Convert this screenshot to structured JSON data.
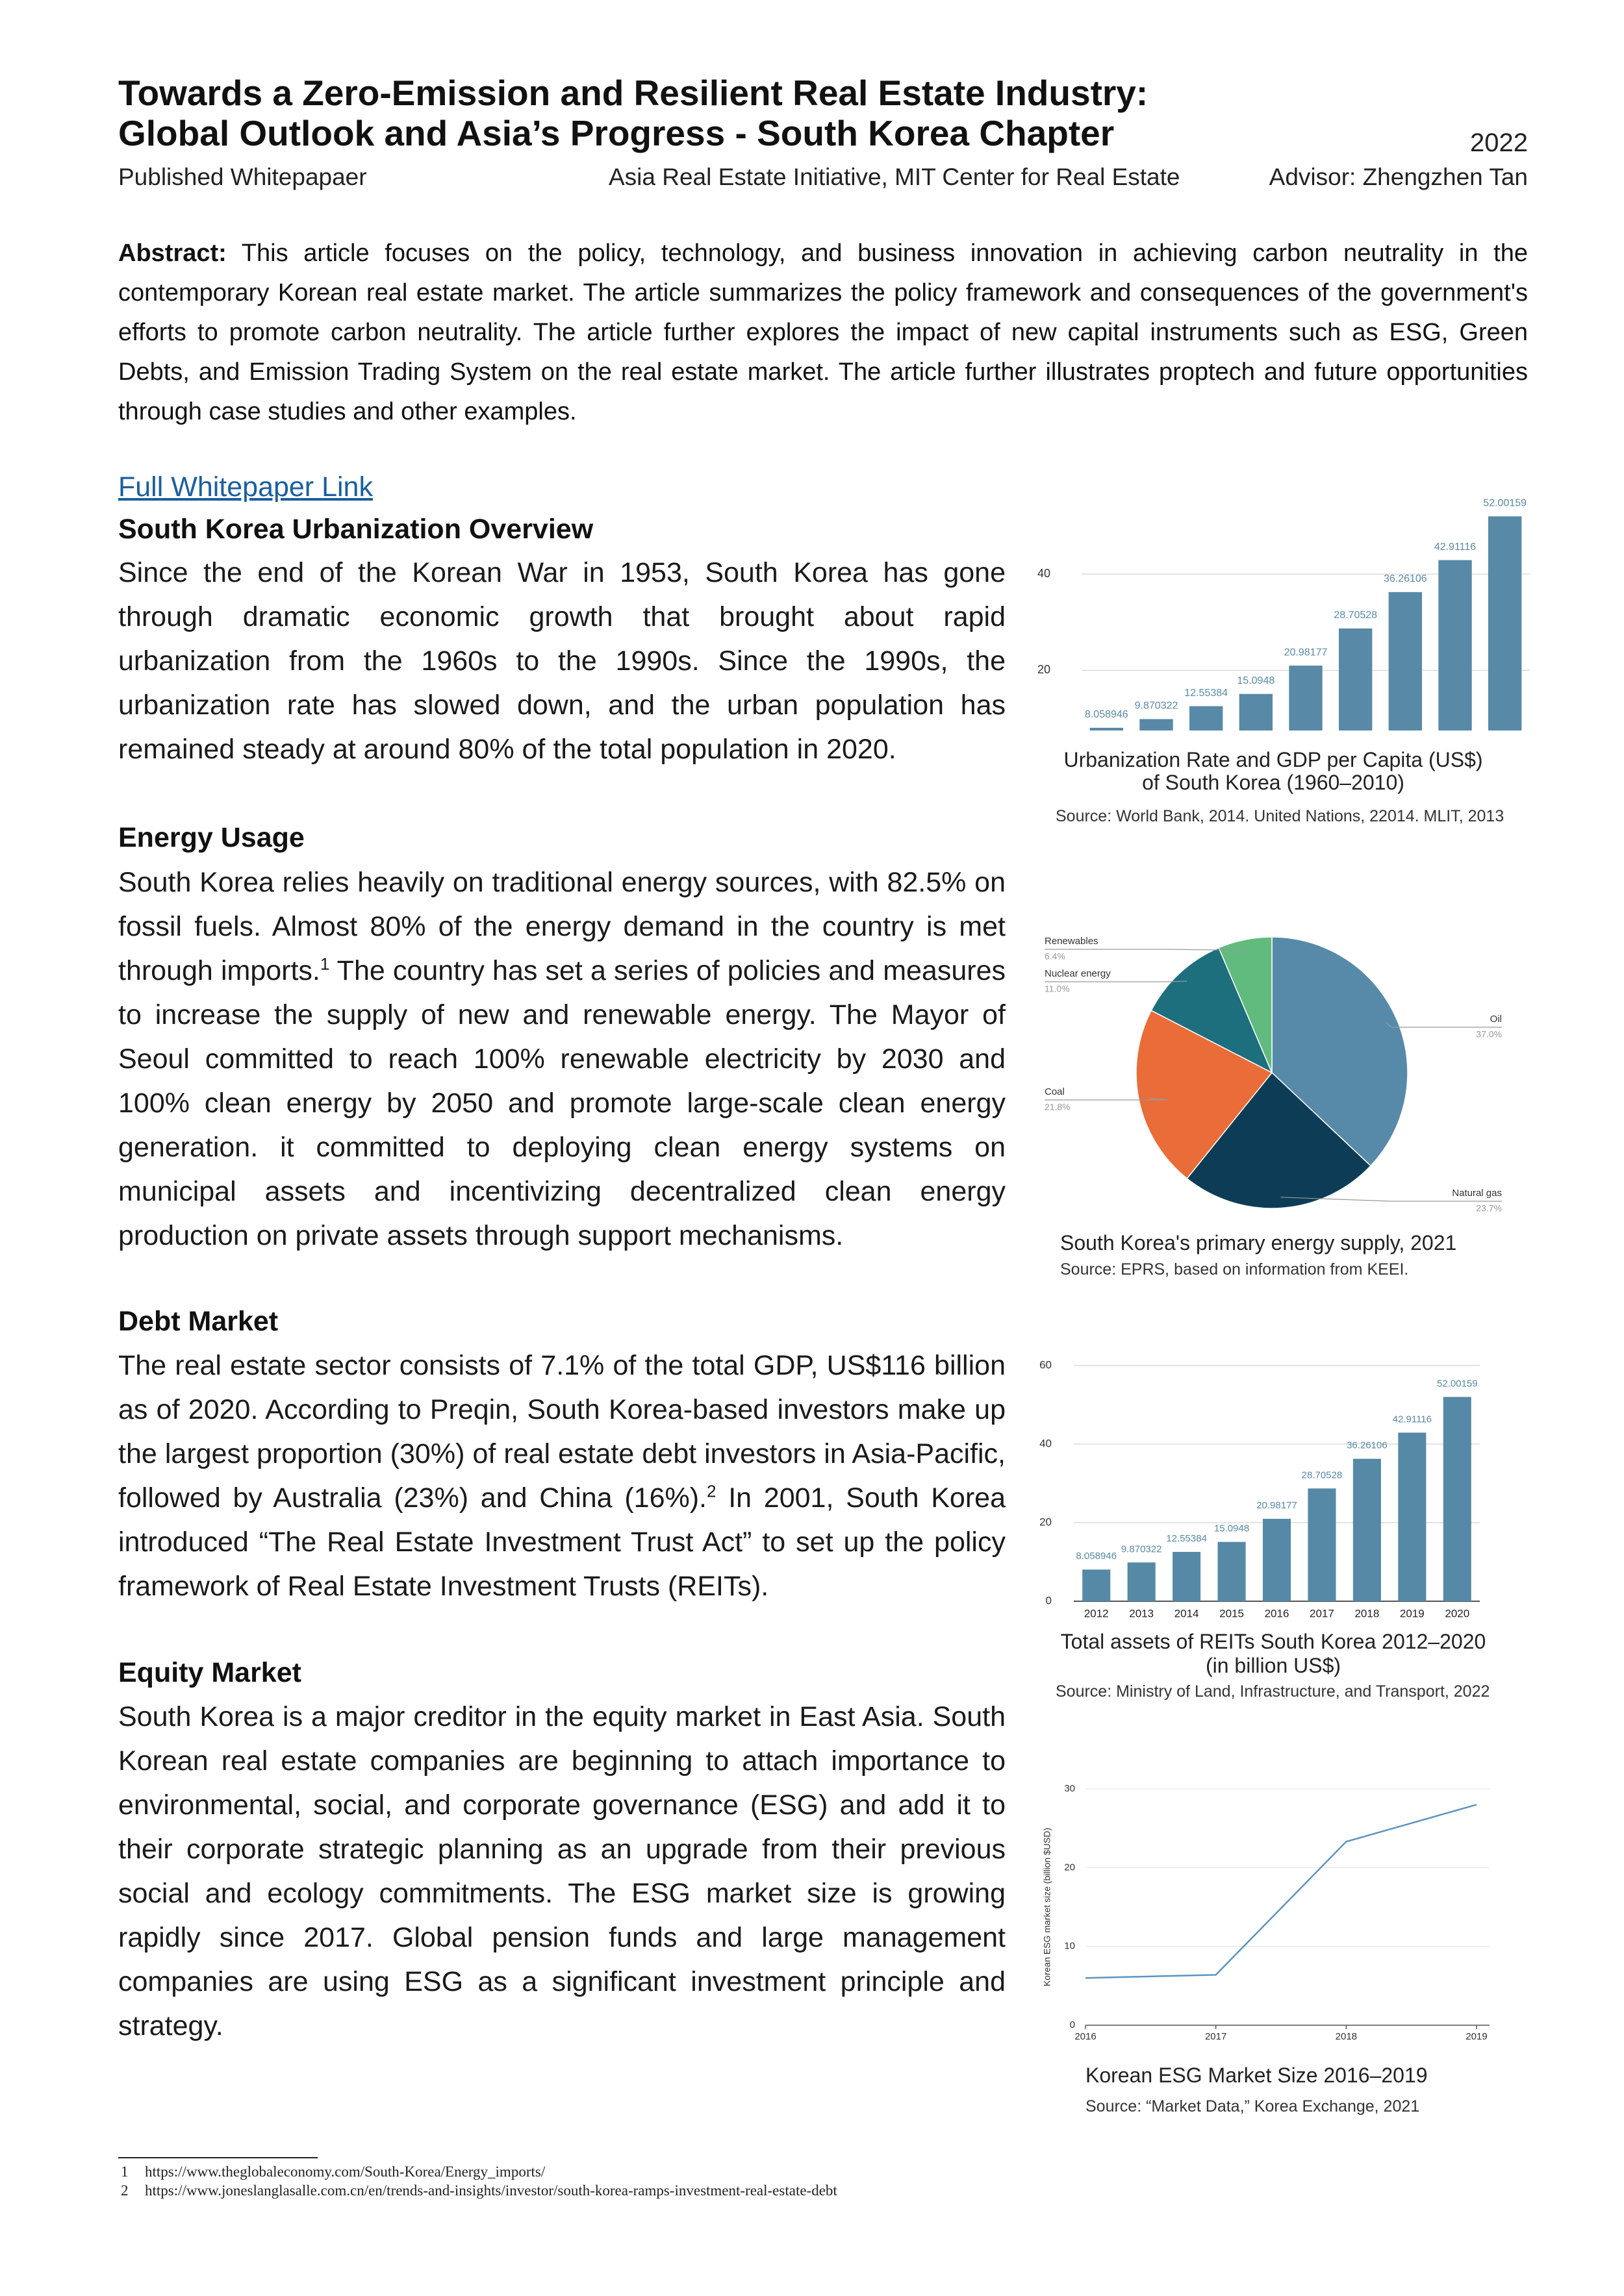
{
  "header": {
    "title": [
      "Towards a Zero-Emission and Resilient Real Estate Industry:",
      "Global Outlook and Asia’s Progress - South Korea Chapter"
    ],
    "year": "2022",
    "publication": "Published Whitepapaer",
    "affiliation": "Asia Real Estate Initiative, MIT Center for Real Estate",
    "advisor": "Advisor: Zhengzhen Tan"
  },
  "abstract": {
    "label": "Abstract:",
    "text": "This article focuses on the policy, technology, and business innovation in achieving carbon neutrality in the contemporary Korean real estate market. The article summarizes the policy framework and consequences of the government's efforts to promote carbon neutrality. The article further explores the impact of new capital instruments such as ESG, Green Debts, and Emission Trading System on the real estate market. The article further illustrates proptech and future opportunities through case studies and other examples."
  },
  "link": "Full Whitepaper Link",
  "sections": [
    {
      "heading": "South Korea Urbanization Overview",
      "body": [
        "Since the end of the Korean War in 1953, South Korea has gone through dramatic economic growth that brought about rapid urbanization from the 1960s to the 1990s. Since the 1990s, the urbanization rate has slowed down, and the urban population has remained steady at around 80% of the total population in 2020."
      ]
    },
    {
      "heading": "Energy Usage",
      "body": [
        "South Korea relies heavily on traditional energy sources, with 82.5% on fossil fuels. Almost 80% of the energy demand in the country is met through imports.",
        " The country has set a series of policies and measures to increase the supply of new and renewable energy. The Mayor of Seoul committed to reach 100% renewable electricity by 2030 and 100% clean energy by 2050 and promote large-scale clean energy generation. it committed to deploying clean energy systems on municipal assets and incentivizing decentralized clean energy production on private assets through support mechanisms."
      ],
      "footnote_ref": "1"
    },
    {
      "heading": "Debt Market",
      "body": [
        "The real estate sector consists of 7.1% of the total GDP, US$116 billion as of 2020. According to Preqin, South Korea-based investors make up the largest proportion (30%) of real estate debt investors in Asia-Pacific, followed by Australia (23%) and China (16%).",
        " In 2001, South Korea introduced “The Real Estate Investment Trust Act” to set up the policy framework of Real Estate Investment Trusts (REITs)."
      ],
      "footnote_ref": "2"
    },
    {
      "heading": "Equity Market",
      "body": [
        "South Korea is a major creditor in the equity market in East Asia. South Korean real estate companies are beginning to attach importance to environmental, social, and corporate governance (ESG) and add it to their corporate strategic planning as an upgrade from their previous social and ecology commitments. The ESG market size is growing rapidly since 2017. Global pension funds and large management companies are using ESG as a significant investment principle and strategy."
      ]
    }
  ],
  "footnotes": [
    {
      "number": "1",
      "url": "https://www.theglobaleconomy.com/South-Korea/Energy_imports/"
    },
    {
      "number": "2",
      "url": "https://www.joneslanglasalle.com.cn/en/trends-and-insights/investor/south-korea-ramps-investment-real-estate-debt"
    }
  ],
  "chart_data": [
    {
      "type": "bar",
      "title": [
        "Urbanization Rate and GDP per Capita (US$)",
        "of South Korea (1960–2010)"
      ],
      "source": "Source: World Bank, 2014. United Nations, 22014. MLIT, 2013",
      "categories": [
        null,
        null,
        null,
        null,
        null,
        null,
        null,
        null,
        null
      ],
      "values": [
        8.058946,
        9.870322,
        12.55384,
        15.0948,
        20.98177,
        28.70528,
        36.26106,
        42.91116,
        52.00159
      ],
      "color": "#5889a7",
      "ylim": [
        7.5,
        55
      ],
      "yticks": [
        20,
        40
      ],
      "grid": true
    },
    {
      "type": "pie",
      "title": "South Korea's primary energy supply, 2021",
      "source": "Source: EPRS, based on information from KEEI.",
      "categories": [
        "Oil",
        "Natural gas",
        "Coal",
        "Nuclear energy",
        "Renewables"
      ],
      "values": [
        37.0,
        23.7,
        21.8,
        11.0,
        6.4
      ],
      "value_labels": [
        "37.0%",
        "23.7%",
        "21.8%",
        "11.0%",
        "6.4%"
      ],
      "colors": [
        "#578aa8",
        "#0d3d56",
        "#ea6c38",
        "#1d6f7d",
        "#62bb7e"
      ]
    },
    {
      "type": "bar",
      "title": [
        "Total assets of REITs South Korea 2012–2020",
        "(in billion US$)"
      ],
      "source": "Source: Ministry of Land, Infrastructure, and Transport, 2022",
      "categories": [
        "2012",
        "2013",
        "2014",
        "2015",
        "2016",
        "2017",
        "2018",
        "2019",
        "2020"
      ],
      "values": [
        8.058946,
        9.870322,
        12.55384,
        15.0948,
        20.98177,
        28.70528,
        36.26106,
        42.91116,
        52.00159
      ],
      "color": "#5689a6",
      "ylim": [
        0,
        60
      ],
      "yticks": [
        0,
        20,
        40,
        60
      ],
      "grid": true
    },
    {
      "type": "line",
      "title": "Korean ESG Market Size 2016–2019",
      "source": "Source:  “Market Data,” Korea Exchange, 2021",
      "ylabel": "Korean ESG market size (billion $USD)",
      "x": [
        2016,
        2017,
        2018,
        2019
      ],
      "values": [
        6.0,
        6.4,
        23.3,
        28.0
      ],
      "color": "#5b95bf",
      "xlim": [
        2016,
        2019
      ],
      "xticks": [
        2016,
        2017,
        2018,
        2019
      ],
      "ylim": [
        0,
        30
      ],
      "yticks": [
        0,
        10,
        20,
        30
      ],
      "grid": true
    }
  ]
}
